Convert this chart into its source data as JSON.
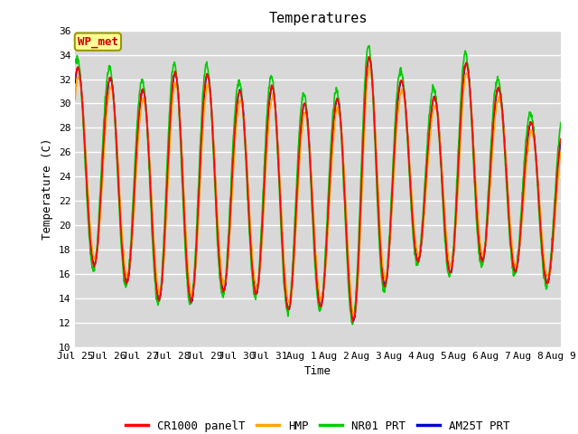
{
  "title": "Temperatures",
  "xlabel": "Time",
  "ylabel": "Temperature (C)",
  "ylim": [
    10,
    36
  ],
  "yticks": [
    10,
    12,
    14,
    16,
    18,
    20,
    22,
    24,
    26,
    28,
    30,
    32,
    34,
    36
  ],
  "series_colors": {
    "CR1000 panelT": "#ff0000",
    "HMP": "#ffa500",
    "NR01 PRT": "#00cc00",
    "AM25T PRT": "#0000cc"
  },
  "annotation_text": "WP_met",
  "annotation_color": "#cc0000",
  "annotation_bg": "#ffff99",
  "annotation_border": "#999900",
  "bg_color": "#d8d8d8",
  "grid_color": "#ffffff",
  "days": [
    "Jul 25",
    "Jul 26",
    "Jul 27",
    "Jul 28",
    "Jul 29",
    "Jul 30",
    "Jul 31",
    "Aug 1",
    "Aug 2",
    "Aug 3",
    "Aug 4",
    "Aug 5",
    "Aug 6",
    "Aug 7",
    "Aug 8",
    "Aug 9"
  ],
  "day_maxes": [
    33.0,
    32.2,
    31.0,
    32.5,
    32.5,
    31.0,
    31.5,
    30.0,
    30.0,
    34.0,
    32.0,
    30.2,
    33.5,
    31.5,
    28.5,
    28.0
  ],
  "day_mins": [
    17.0,
    16.5,
    14.5,
    13.5,
    14.0,
    15.0,
    14.0,
    12.5,
    14.0,
    11.0,
    18.0,
    16.5,
    15.8,
    18.0,
    15.0,
    15.5
  ],
  "title_fontsize": 11,
  "label_fontsize": 9,
  "tick_fontsize": 8
}
